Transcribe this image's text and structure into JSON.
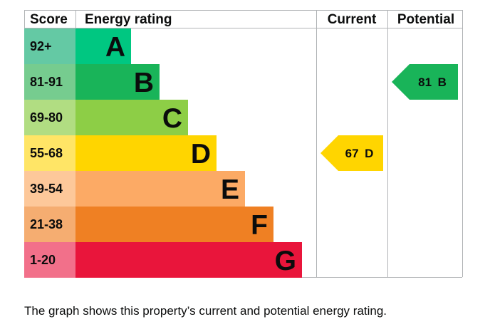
{
  "chart_data": {
    "type": "table",
    "columns": [
      "Score",
      "Energy rating",
      "Current",
      "Potential"
    ],
    "bands": [
      {
        "score": "92+",
        "letter": "A",
        "color": "#00c781",
        "score_bg": "#64c9a4"
      },
      {
        "score": "81-91",
        "letter": "B",
        "color": "#19b459",
        "score_bg": "#76cc8f"
      },
      {
        "score": "69-80",
        "letter": "C",
        "color": "#8dce46",
        "score_bg": "#b1dd82"
      },
      {
        "score": "55-68",
        "letter": "D",
        "color": "#ffd500",
        "score_bg": "#ffe566"
      },
      {
        "score": "39-54",
        "letter": "E",
        "color": "#fcaa65",
        "score_bg": "#fdc89a"
      },
      {
        "score": "21-38",
        "letter": "F",
        "color": "#ef8023",
        "score_bg": "#f5ad71"
      },
      {
        "score": "1-20",
        "letter": "G",
        "color": "#e9153b",
        "score_bg": "#f2708a"
      }
    ],
    "current": {
      "value": 67,
      "band": "D",
      "label": "67 D"
    },
    "potential": {
      "value": 81,
      "band": "B",
      "label": "81 B"
    }
  },
  "caption": "The graph shows this property’s current and potential energy rating."
}
